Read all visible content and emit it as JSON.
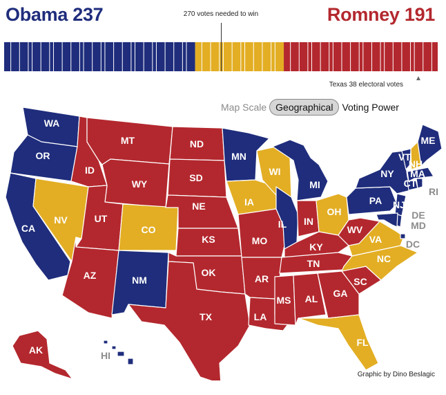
{
  "header": {
    "obama": "Obama 237",
    "romney": "Romney 191",
    "needed": "270 votes needed to win",
    "texas_note": "Texas 38 electoral votes",
    "arrow": "▲"
  },
  "colors": {
    "dem": "#1f2d7c",
    "rep": "#b3282e",
    "tossup": "#e3ae24",
    "outline": "#ffffff",
    "callout": "#8c8c8c"
  },
  "scale": {
    "label": "Map Scale",
    "geographical": "Geographical",
    "voting_power": "Voting Power",
    "selected": "Geographical"
  },
  "vote_bar": {
    "total": 538,
    "dem": 237,
    "tossup": 110,
    "rep": 191
  },
  "states": [
    {
      "abbr": "WA",
      "party": "dem"
    },
    {
      "abbr": "OR",
      "party": "dem"
    },
    {
      "abbr": "CA",
      "party": "dem"
    },
    {
      "abbr": "NV",
      "party": "tossup"
    },
    {
      "abbr": "ID",
      "party": "rep"
    },
    {
      "abbr": "MT",
      "party": "rep"
    },
    {
      "abbr": "WY",
      "party": "rep"
    },
    {
      "abbr": "UT",
      "party": "rep"
    },
    {
      "abbr": "CO",
      "party": "tossup"
    },
    {
      "abbr": "AZ",
      "party": "rep"
    },
    {
      "abbr": "NM",
      "party": "dem"
    },
    {
      "abbr": "ND",
      "party": "rep"
    },
    {
      "abbr": "SD",
      "party": "rep"
    },
    {
      "abbr": "NE",
      "party": "rep"
    },
    {
      "abbr": "KS",
      "party": "rep"
    },
    {
      "abbr": "OK",
      "party": "rep"
    },
    {
      "abbr": "TX",
      "party": "rep"
    },
    {
      "abbr": "MN",
      "party": "dem"
    },
    {
      "abbr": "IA",
      "party": "tossup"
    },
    {
      "abbr": "MO",
      "party": "rep"
    },
    {
      "abbr": "AR",
      "party": "rep"
    },
    {
      "abbr": "LA",
      "party": "rep"
    },
    {
      "abbr": "WI",
      "party": "tossup"
    },
    {
      "abbr": "IL",
      "party": "dem"
    },
    {
      "abbr": "MI",
      "party": "dem"
    },
    {
      "abbr": "IN",
      "party": "rep"
    },
    {
      "abbr": "OH",
      "party": "tossup"
    },
    {
      "abbr": "KY",
      "party": "rep"
    },
    {
      "abbr": "TN",
      "party": "rep"
    },
    {
      "abbr": "MS",
      "party": "rep"
    },
    {
      "abbr": "AL",
      "party": "rep"
    },
    {
      "abbr": "GA",
      "party": "rep"
    },
    {
      "abbr": "FL",
      "party": "tossup"
    },
    {
      "abbr": "SC",
      "party": "rep"
    },
    {
      "abbr": "NC",
      "party": "tossup"
    },
    {
      "abbr": "VA",
      "party": "tossup"
    },
    {
      "abbr": "WV",
      "party": "rep"
    },
    {
      "abbr": "PA",
      "party": "dem"
    },
    {
      "abbr": "NY",
      "party": "dem"
    },
    {
      "abbr": "VT",
      "party": "dem"
    },
    {
      "abbr": "NH",
      "party": "tossup"
    },
    {
      "abbr": "ME",
      "party": "dem"
    },
    {
      "abbr": "MA",
      "party": "dem"
    },
    {
      "abbr": "CT",
      "party": "dem"
    },
    {
      "abbr": "RI",
      "party": "dem"
    },
    {
      "abbr": "NJ",
      "party": "dem"
    },
    {
      "abbr": "DE",
      "party": "dem"
    },
    {
      "abbr": "MD",
      "party": "dem"
    },
    {
      "abbr": "DC",
      "party": "dem"
    },
    {
      "abbr": "AK",
      "party": "rep"
    },
    {
      "abbr": "HI",
      "party": "dem"
    }
  ],
  "credit": "Graphic by Dino Beslagic"
}
